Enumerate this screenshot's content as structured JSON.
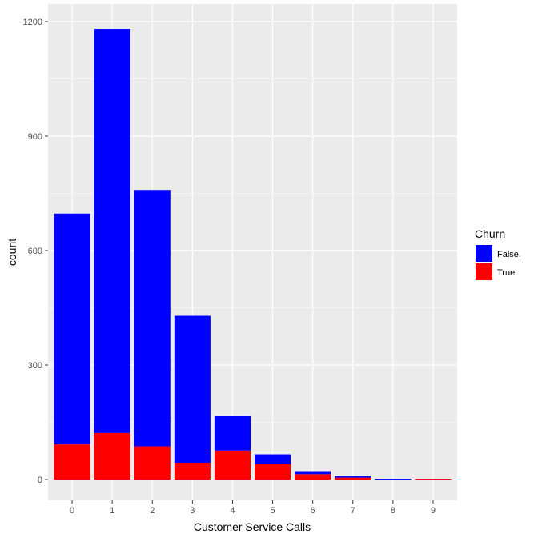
{
  "chart_data": {
    "type": "bar",
    "stacked": true,
    "title": "",
    "xlabel": "Customer Service Calls",
    "ylabel": "count",
    "categories": [
      "0",
      "1",
      "2",
      "3",
      "4",
      "5",
      "6",
      "7",
      "8",
      "9"
    ],
    "series": [
      {
        "name": "False.",
        "color": "#0000ff",
        "values": [
          605,
          1059,
          672,
          385,
          90,
          26,
          8,
          4,
          1,
          0
        ]
      },
      {
        "name": "True.",
        "color": "#ff0000",
        "values": [
          92,
          122,
          87,
          44,
          76,
          40,
          14,
          5,
          1,
          2
        ]
      }
    ],
    "ylim": [
      0,
      1250
    ],
    "yticks": [
      0,
      300,
      600,
      900,
      1200
    ],
    "legend": {
      "title": "Churn",
      "position": "right"
    },
    "panel_color": "#ebebeb",
    "grid": true
  }
}
